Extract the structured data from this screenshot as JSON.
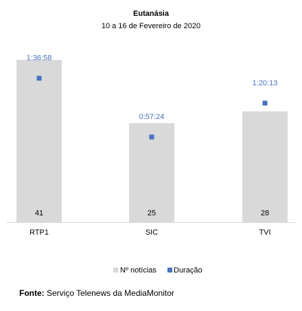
{
  "chart_data": {
    "type": "bar",
    "title": "Eutanásia",
    "subtitle": "10 a 16 de Fevereiro de 2020",
    "categories": [
      "RTP1",
      "SIC",
      "TVI"
    ],
    "series": [
      {
        "name": "Nº notícias",
        "values": [
          41,
          25,
          28
        ],
        "color": "#d9d9d9"
      },
      {
        "name": "Duração",
        "values": [
          "1:36:58",
          "0:57:24",
          "1:20:13"
        ],
        "values_seconds": [
          5818,
          3444,
          4813
        ],
        "color": "#4472c4",
        "marker": "square"
      }
    ],
    "ylim_count": [
      0,
      45
    ],
    "ylim_duration_seconds": [
      0,
      7200
    ],
    "legend_position": "bottom",
    "grid": false,
    "label_color": "#4472c4"
  },
  "source": {
    "label": "Fonte:",
    "text": " Serviço Telenews da MediaMonitor"
  }
}
